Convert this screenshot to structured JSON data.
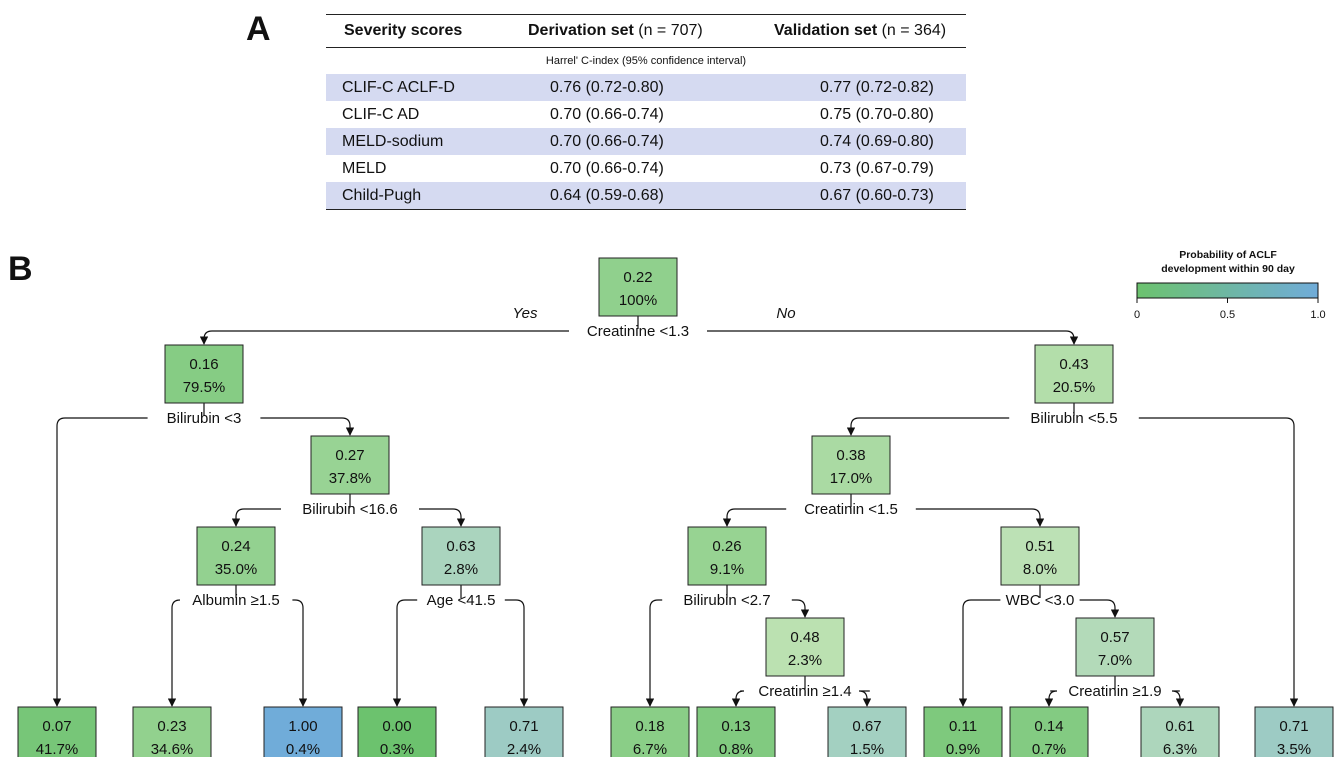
{
  "panel_a": {
    "letter": "A",
    "header": {
      "col1": "Severity scores",
      "col2_bold": "Derivation set",
      "col2_rest": " (n = 707)",
      "col3_bold": "Validation set",
      "col3_rest": " (n = 364)"
    },
    "subheader": "Harrel' C-index (95% confidence interval)",
    "rows": [
      {
        "score": "CLIF-C ACLF-D",
        "derivation": "0.76 (0.72-0.80)",
        "validation": "0.77 (0.72-0.82)"
      },
      {
        "score": "CLIF-C AD",
        "derivation": "0.70 (0.66-0.74)",
        "validation": "0.75 (0.70-0.80)"
      },
      {
        "score": "MELD-sodium",
        "derivation": "0.70 (0.66-0.74)",
        "validation": "0.74 (0.69-0.80)"
      },
      {
        "score": "MELD",
        "derivation": "0.70 (0.66-0.74)",
        "validation": "0.73 (0.67-0.79)"
      },
      {
        "score": "Child-Pugh",
        "derivation": "0.64 (0.59-0.68)",
        "validation": "0.67 (0.60-0.73)"
      }
    ],
    "shade_color": "#d5daf1"
  },
  "panel_b": {
    "letter": "B",
    "yes_label": "Yes",
    "no_label": "No",
    "legend": {
      "title_line1": "Probability of ACLF",
      "title_line2": "development within 90 day",
      "ticks": [
        "0",
        "0.5",
        "1.0"
      ],
      "color_low": "#6cc26e",
      "color_high": "#70acd9"
    },
    "nodes": [
      {
        "id": "root",
        "prob": "0.22",
        "pct": "100%"
      },
      {
        "id": "n2",
        "prob": "0.16",
        "pct": "79.5%"
      },
      {
        "id": "n3",
        "prob": "0.43",
        "pct": "20.5%"
      },
      {
        "id": "n4",
        "prob": "0.27",
        "pct": "37.8%"
      },
      {
        "id": "n5",
        "prob": "0.24",
        "pct": "35.0%"
      },
      {
        "id": "n6",
        "prob": "0.63",
        "pct": "2.8%"
      },
      {
        "id": "n7",
        "prob": "0.38",
        "pct": "17.0%"
      },
      {
        "id": "n8",
        "prob": "0.26",
        "pct": "9.1%"
      },
      {
        "id": "n9",
        "prob": "0.51",
        "pct": "8.0%"
      },
      {
        "id": "n10",
        "prob": "0.48",
        "pct": "2.3%"
      },
      {
        "id": "n11",
        "prob": "0.57",
        "pct": "7.0%"
      },
      {
        "id": "l1",
        "prob": "0.07",
        "pct": "41.7%"
      },
      {
        "id": "l2",
        "prob": "0.23",
        "pct": "34.6%"
      },
      {
        "id": "l3",
        "prob": "1.00",
        "pct": "0.4%"
      },
      {
        "id": "l4",
        "prob": "0.00",
        "pct": "0.3%"
      },
      {
        "id": "l5",
        "prob": "0.71",
        "pct": "2.4%"
      },
      {
        "id": "l6",
        "prob": "0.18",
        "pct": "6.7%"
      },
      {
        "id": "l7",
        "prob": "0.13",
        "pct": "0.8%"
      },
      {
        "id": "l8",
        "prob": "0.67",
        "pct": "1.5%"
      },
      {
        "id": "l9",
        "prob": "0.11",
        "pct": "0.9%"
      },
      {
        "id": "l10",
        "prob": "0.14",
        "pct": "0.7%"
      },
      {
        "id": "l11",
        "prob": "0.61",
        "pct": "6.3%"
      },
      {
        "id": "l12",
        "prob": "0.71",
        "pct": "3.5%"
      }
    ],
    "splits": [
      {
        "id": "s_root",
        "label": "Creatinine <1.3"
      },
      {
        "id": "s_n2",
        "label": "Bilirubin <3"
      },
      {
        "id": "s_n3",
        "label": "Bilirubin <5.5"
      },
      {
        "id": "s_n4",
        "label": "Bilirubin <16.6"
      },
      {
        "id": "s_n5",
        "label": "Albumin ≥1.5"
      },
      {
        "id": "s_n6",
        "label": "Age <41.5"
      },
      {
        "id": "s_n7",
        "label": "Creatinin <1.5"
      },
      {
        "id": "s_n8",
        "label": "Bilirubin <2.7"
      },
      {
        "id": "s_n9",
        "label": "WBC <3.0"
      },
      {
        "id": "s_n10",
        "label": "Creatinin ≥1.4"
      },
      {
        "id": "s_n11",
        "label": "Creatinin ≥1.9"
      }
    ]
  }
}
